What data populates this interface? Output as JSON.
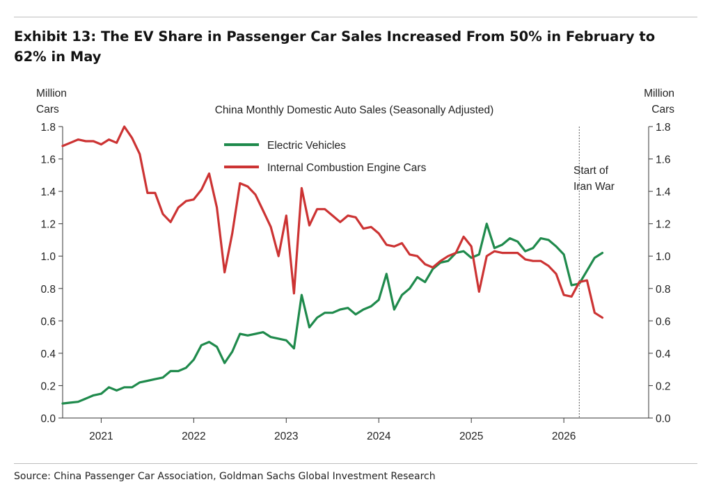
{
  "title": "Exhibit 13: The EV Share in Passenger Car Sales Increased From 50% in February to 62% in May",
  "source": "Source: China Passenger Car Association, Goldman Sachs Global Investment Research",
  "chart_data": {
    "type": "line",
    "title": "China Monthly Domestic Auto Sales (Seasonally Adjusted)",
    "ylabel_left": [
      "Million",
      "Cars"
    ],
    "ylabel_right": [
      "Million",
      "Cars"
    ],
    "ylim": [
      0.0,
      1.8
    ],
    "yticks": [
      "0.0",
      "0.2",
      "0.4",
      "0.6",
      "0.8",
      "1.0",
      "1.2",
      "1.4",
      "1.6",
      "1.8"
    ],
    "xlim": [
      "2020-08",
      "2026-12"
    ],
    "xticks": [
      "2021",
      "2022",
      "2023",
      "2024",
      "2025",
      "2026"
    ],
    "legend_position": "top-center",
    "grid": false,
    "annotation": {
      "x": "2026-03",
      "label": [
        "Start of",
        "Iran War"
      ]
    },
    "series": [
      {
        "name": "Electric Vehicles",
        "color": "#1f8a4c",
        "x": [
          "2020-08",
          "2020-09",
          "2020-10",
          "2020-11",
          "2020-12",
          "2021-01",
          "2021-02",
          "2021-03",
          "2021-04",
          "2021-05",
          "2021-06",
          "2021-07",
          "2021-08",
          "2021-09",
          "2021-10",
          "2021-11",
          "2021-12",
          "2022-01",
          "2022-02",
          "2022-03",
          "2022-04",
          "2022-05",
          "2022-06",
          "2022-07",
          "2022-08",
          "2022-09",
          "2022-10",
          "2022-11",
          "2022-12",
          "2023-01",
          "2023-02",
          "2023-03",
          "2023-04",
          "2023-05",
          "2023-06",
          "2023-07",
          "2023-08",
          "2023-09",
          "2023-10",
          "2023-11",
          "2023-12",
          "2024-01",
          "2024-02",
          "2024-03",
          "2024-04",
          "2024-05",
          "2024-06",
          "2024-07",
          "2024-08",
          "2024-09",
          "2024-10",
          "2024-11",
          "2024-12",
          "2025-01",
          "2025-02",
          "2025-03",
          "2025-04",
          "2025-05",
          "2025-06",
          "2025-07",
          "2025-08",
          "2025-09",
          "2025-10",
          "2025-11",
          "2025-12",
          "2026-01",
          "2026-02",
          "2026-03",
          "2026-04",
          "2026-05",
          "2026-06"
        ],
        "values": [
          0.09,
          0.095,
          0.1,
          0.12,
          0.14,
          0.15,
          0.19,
          0.17,
          0.19,
          0.19,
          0.22,
          0.23,
          0.24,
          0.25,
          0.29,
          0.29,
          0.31,
          0.36,
          0.45,
          0.47,
          0.44,
          0.34,
          0.41,
          0.52,
          0.51,
          0.52,
          0.53,
          0.5,
          0.49,
          0.48,
          0.43,
          0.76,
          0.56,
          0.62,
          0.65,
          0.65,
          0.67,
          0.68,
          0.64,
          0.67,
          0.69,
          0.73,
          0.89,
          0.67,
          0.76,
          0.8,
          0.87,
          0.84,
          0.92,
          0.96,
          0.97,
          1.02,
          1.03,
          0.99,
          1.01,
          1.2,
          1.05,
          1.07,
          1.11,
          1.09,
          1.03,
          1.05,
          1.11,
          1.1,
          1.06,
          1.01,
          0.82,
          0.83,
          0.91,
          0.99,
          1.02
        ]
      },
      {
        "name": "Internal Combustion Engine Cars",
        "color": "#cc3333",
        "x": [
          "2020-08",
          "2020-09",
          "2020-10",
          "2020-11",
          "2020-12",
          "2021-01",
          "2021-02",
          "2021-03",
          "2021-04",
          "2021-05",
          "2021-06",
          "2021-07",
          "2021-08",
          "2021-09",
          "2021-10",
          "2021-11",
          "2021-12",
          "2022-01",
          "2022-02",
          "2022-03",
          "2022-04",
          "2022-05",
          "2022-06",
          "2022-07",
          "2022-08",
          "2022-09",
          "2022-10",
          "2022-11",
          "2022-12",
          "2023-01",
          "2023-02",
          "2023-03",
          "2023-04",
          "2023-05",
          "2023-06",
          "2023-07",
          "2023-08",
          "2023-09",
          "2023-10",
          "2023-11",
          "2023-12",
          "2024-01",
          "2024-02",
          "2024-03",
          "2024-04",
          "2024-05",
          "2024-06",
          "2024-07",
          "2024-08",
          "2024-09",
          "2024-10",
          "2024-11",
          "2024-12",
          "2025-01",
          "2025-02",
          "2025-03",
          "2025-04",
          "2025-05",
          "2025-06",
          "2025-07",
          "2025-08",
          "2025-09",
          "2025-10",
          "2025-11",
          "2025-12",
          "2026-01",
          "2026-02",
          "2026-03",
          "2026-04",
          "2026-05",
          "2026-06"
        ],
        "values": [
          1.68,
          1.7,
          1.72,
          1.71,
          1.71,
          1.69,
          1.72,
          1.7,
          1.8,
          1.73,
          1.63,
          1.39,
          1.39,
          1.26,
          1.21,
          1.3,
          1.34,
          1.35,
          1.41,
          1.51,
          1.3,
          0.9,
          1.14,
          1.45,
          1.43,
          1.38,
          1.28,
          1.18,
          1.0,
          1.25,
          0.77,
          1.42,
          1.19,
          1.29,
          1.29,
          1.25,
          1.21,
          1.25,
          1.24,
          1.17,
          1.18,
          1.14,
          1.07,
          1.06,
          1.08,
          1.01,
          1.0,
          0.95,
          0.93,
          0.97,
          1.0,
          1.02,
          1.12,
          1.06,
          0.78,
          1.0,
          1.03,
          1.02,
          1.02,
          1.02,
          0.98,
          0.97,
          0.97,
          0.94,
          0.89,
          0.76,
          0.75,
          0.84,
          0.85,
          0.65,
          0.62
        ]
      }
    ]
  }
}
